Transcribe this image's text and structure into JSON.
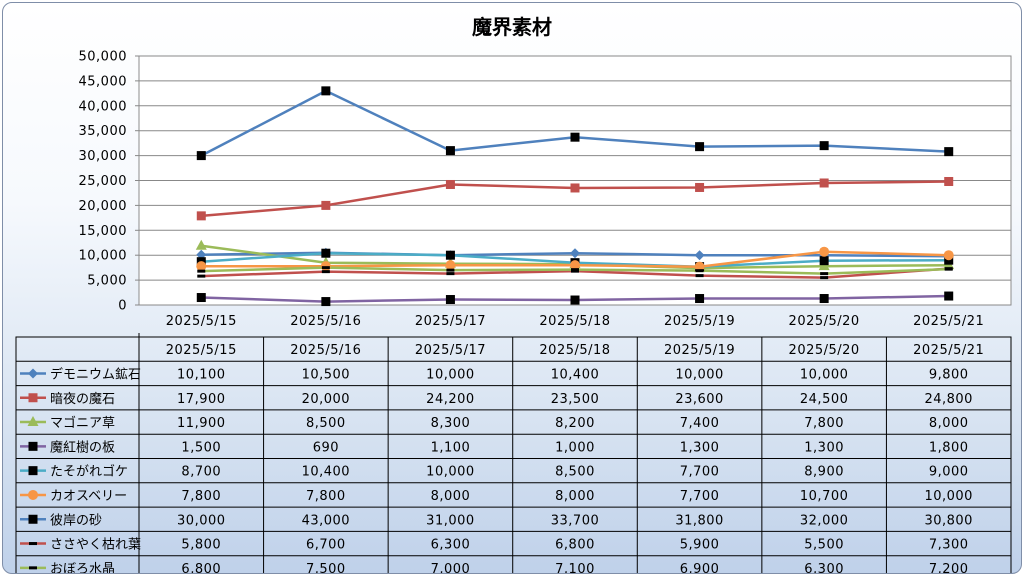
{
  "chart_data": {
    "type": "line",
    "title": "魔界素材",
    "xlabel": "",
    "ylabel": "",
    "ylim": [
      0,
      50000
    ],
    "ytick_step": 5000,
    "yticks": [
      "0",
      "5,000",
      "10,000",
      "15,000",
      "20,000",
      "25,000",
      "30,000",
      "35,000",
      "40,000",
      "45,000",
      "50,000"
    ],
    "grid": true,
    "legend": "data-table-below",
    "categories": [
      "2025/5/15",
      "2025/5/16",
      "2025/5/17",
      "2025/5/18",
      "2025/5/19",
      "2025/5/20",
      "2025/5/21"
    ],
    "series": [
      {
        "name": "デモニウム鉱石",
        "color": "#4f81bd",
        "marker": "diamond",
        "values": [
          10100,
          10500,
          10000,
          10400,
          10000,
          10000,
          9800
        ],
        "labels": [
          "10,100",
          "10,500",
          "10,000",
          "10,400",
          "10,000",
          "10,000",
          "9,800"
        ]
      },
      {
        "name": "暗夜の魔石",
        "color": "#c0504d",
        "marker": "square",
        "values": [
          17900,
          20000,
          24200,
          23500,
          23600,
          24500,
          24800
        ],
        "labels": [
          "17,900",
          "20,000",
          "24,200",
          "23,500",
          "23,600",
          "24,500",
          "24,800"
        ]
      },
      {
        "name": "マゴニア草",
        "color": "#9bbb59",
        "marker": "triangle",
        "values": [
          11900,
          8500,
          8300,
          8200,
          7400,
          7800,
          8000
        ],
        "labels": [
          "11,900",
          "8,500",
          "8,300",
          "8,200",
          "7,400",
          "7,800",
          "8,000"
        ]
      },
      {
        "name": "魔紅樹の板",
        "color": "#8064a2",
        "marker": "black-square",
        "values": [
          1500,
          690,
          1100,
          1000,
          1300,
          1300,
          1800
        ],
        "labels": [
          "1,500",
          "690",
          "1,100",
          "1,000",
          "1,300",
          "1,300",
          "1,800"
        ]
      },
      {
        "name": "たそがれゴケ",
        "color": "#4bacc6",
        "marker": "black-square",
        "values": [
          8700,
          10400,
          10000,
          8500,
          7700,
          8900,
          9000
        ],
        "labels": [
          "8,700",
          "10,400",
          "10,000",
          "8,500",
          "7,700",
          "8,900",
          "9,000"
        ]
      },
      {
        "name": "カオスベリー",
        "color": "#f79646",
        "marker": "circle",
        "values": [
          7800,
          7800,
          8000,
          8000,
          7700,
          10700,
          10000
        ],
        "labels": [
          "7,800",
          "7,800",
          "8,000",
          "8,000",
          "7,700",
          "10,700",
          "10,000"
        ]
      },
      {
        "name": "彼岸の砂",
        "color": "#4f81bd",
        "marker": "black-square",
        "values": [
          30000,
          43000,
          31000,
          33700,
          31800,
          32000,
          30800
        ],
        "labels": [
          "30,000",
          "43,000",
          "31,000",
          "33,700",
          "31,800",
          "32,000",
          "30,800"
        ]
      },
      {
        "name": "ささやく枯れ葉",
        "color": "#c0504d",
        "marker": "black-dash",
        "values": [
          5800,
          6700,
          6300,
          6800,
          5900,
          5500,
          7300
        ],
        "labels": [
          "5,800",
          "6,700",
          "6,300",
          "6,800",
          "5,900",
          "5,500",
          "7,300"
        ]
      },
      {
        "name": "おぼろ水晶",
        "color": "#9bbb59",
        "marker": "black-dash",
        "values": [
          6800,
          7500,
          7000,
          7100,
          6900,
          6300,
          7200
        ],
        "labels": [
          "6,800",
          "7,500",
          "7,000",
          "7,100",
          "6,900",
          "6,300",
          "7,200"
        ]
      }
    ]
  }
}
